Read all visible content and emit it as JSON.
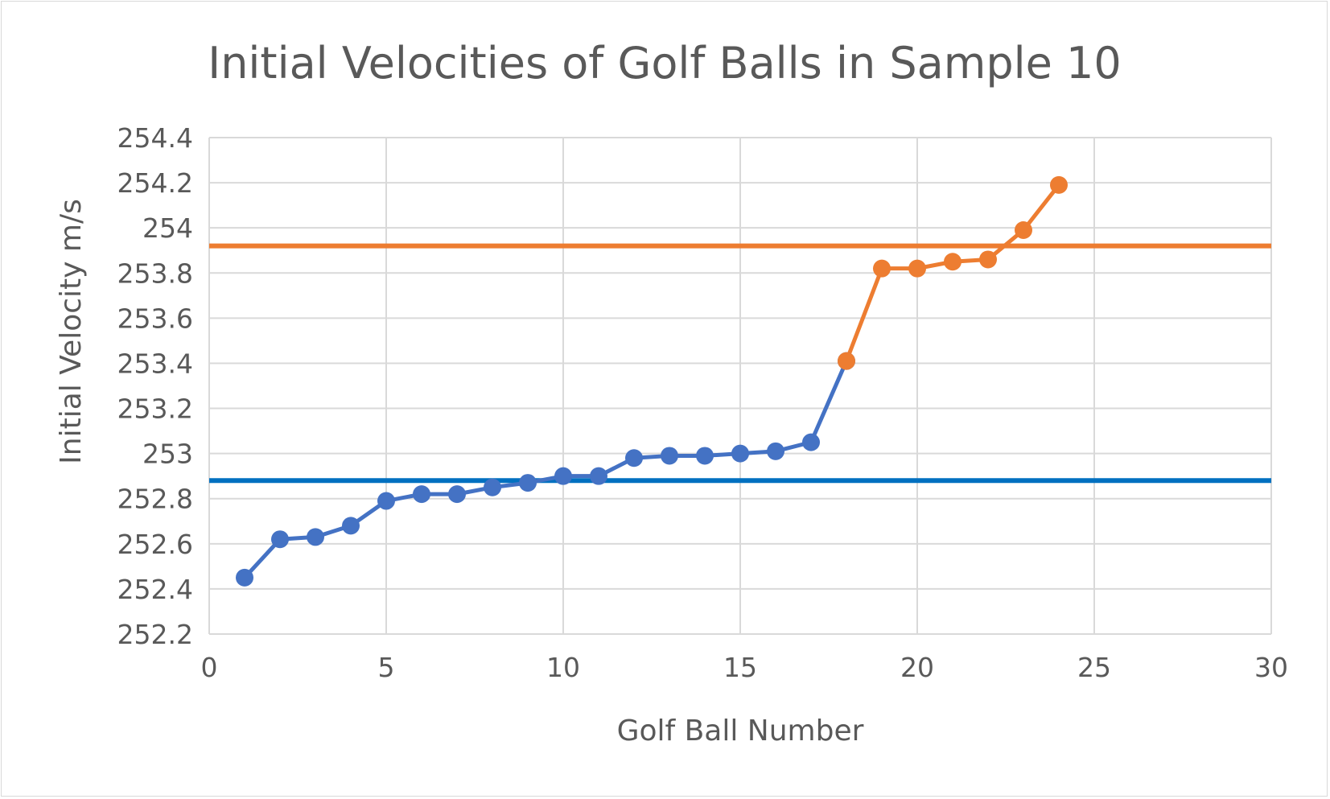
{
  "chart_data": {
    "type": "scatter",
    "title": "Initial Velocities of Golf Balls in Sample 10",
    "xlabel": "Golf Ball Number",
    "ylabel": "Initial Velocity m/s",
    "xlim": [
      0,
      30
    ],
    "ylim": [
      252.2,
      254.4
    ],
    "x_ticks": [
      "0",
      "5",
      "10",
      "15",
      "20",
      "25",
      "30"
    ],
    "y_ticks": [
      "252.2",
      "252.4",
      "252.6",
      "252.8",
      "253",
      "253.2",
      "253.4",
      "253.6",
      "253.8",
      "254",
      "254.2",
      "254.4"
    ],
    "grid": true,
    "legend": "none",
    "series": [
      {
        "color": "#4472c4",
        "x": [
          1,
          2,
          3,
          4,
          5,
          6,
          7,
          8,
          9,
          10,
          11,
          12,
          13,
          14,
          15,
          16,
          17,
          18
        ],
        "y": [
          252.45,
          252.62,
          252.63,
          252.68,
          252.79,
          252.82,
          252.82,
          252.85,
          252.87,
          252.9,
          252.9,
          252.98,
          252.99,
          252.99,
          253.0,
          253.01,
          253.05,
          253.41
        ]
      },
      {
        "color": "#ed7d31",
        "x": [
          18,
          19,
          20,
          21,
          22,
          23,
          24
        ],
        "y": [
          253.41,
          253.82,
          253.82,
          253.85,
          253.86,
          253.99,
          254.19
        ]
      }
    ],
    "reference_lines": [
      {
        "y": 253.92,
        "color": "#ed7d31"
      },
      {
        "y": 252.88,
        "color": "#0070c0"
      }
    ]
  }
}
